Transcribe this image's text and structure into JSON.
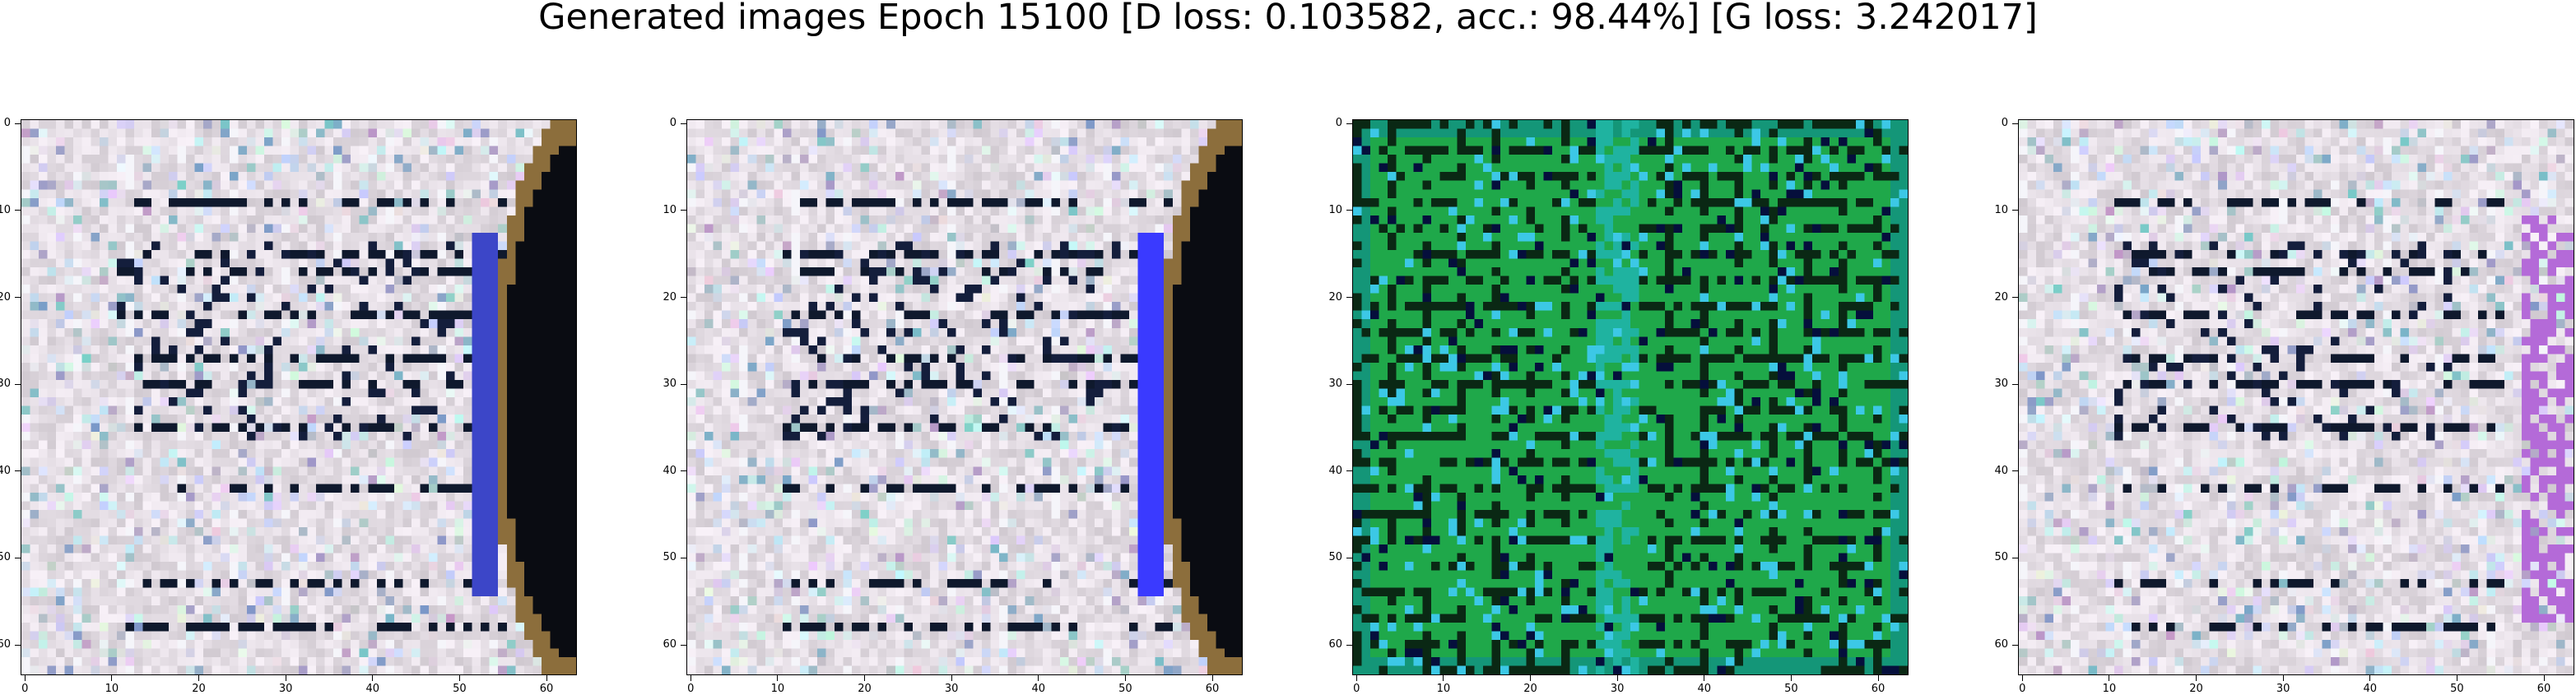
{
  "title": "Generated images Epoch 15100 [D loss: 0.103582, acc.: 98.44%] [G loss: 3.242017]",
  "axis": {
    "x_ticks": [
      "0",
      "10",
      "20",
      "30",
      "40",
      "50",
      "60"
    ],
    "y_ticks": [
      "0",
      "10",
      "20",
      "30",
      "40",
      "50",
      "60"
    ],
    "range": [
      0,
      64
    ]
  },
  "panels": [
    {
      "name": "generated-image-1",
      "palette": "pastel",
      "dark_band": "right-black"
    },
    {
      "name": "generated-image-2",
      "palette": "pastel",
      "dark_band": "right-black-blue"
    },
    {
      "name": "generated-image-3",
      "palette": "green",
      "dark_band": "none"
    },
    {
      "name": "generated-image-4",
      "palette": "pastel",
      "dark_band": "right-violet"
    }
  ],
  "colors": {
    "pastel_base": "#e4dde4",
    "green_base": "#1fa84a",
    "teal": "#1fb3a0",
    "dark": "#0a0c12",
    "blue": "#3a3aff",
    "violet": "#b46ad8"
  }
}
